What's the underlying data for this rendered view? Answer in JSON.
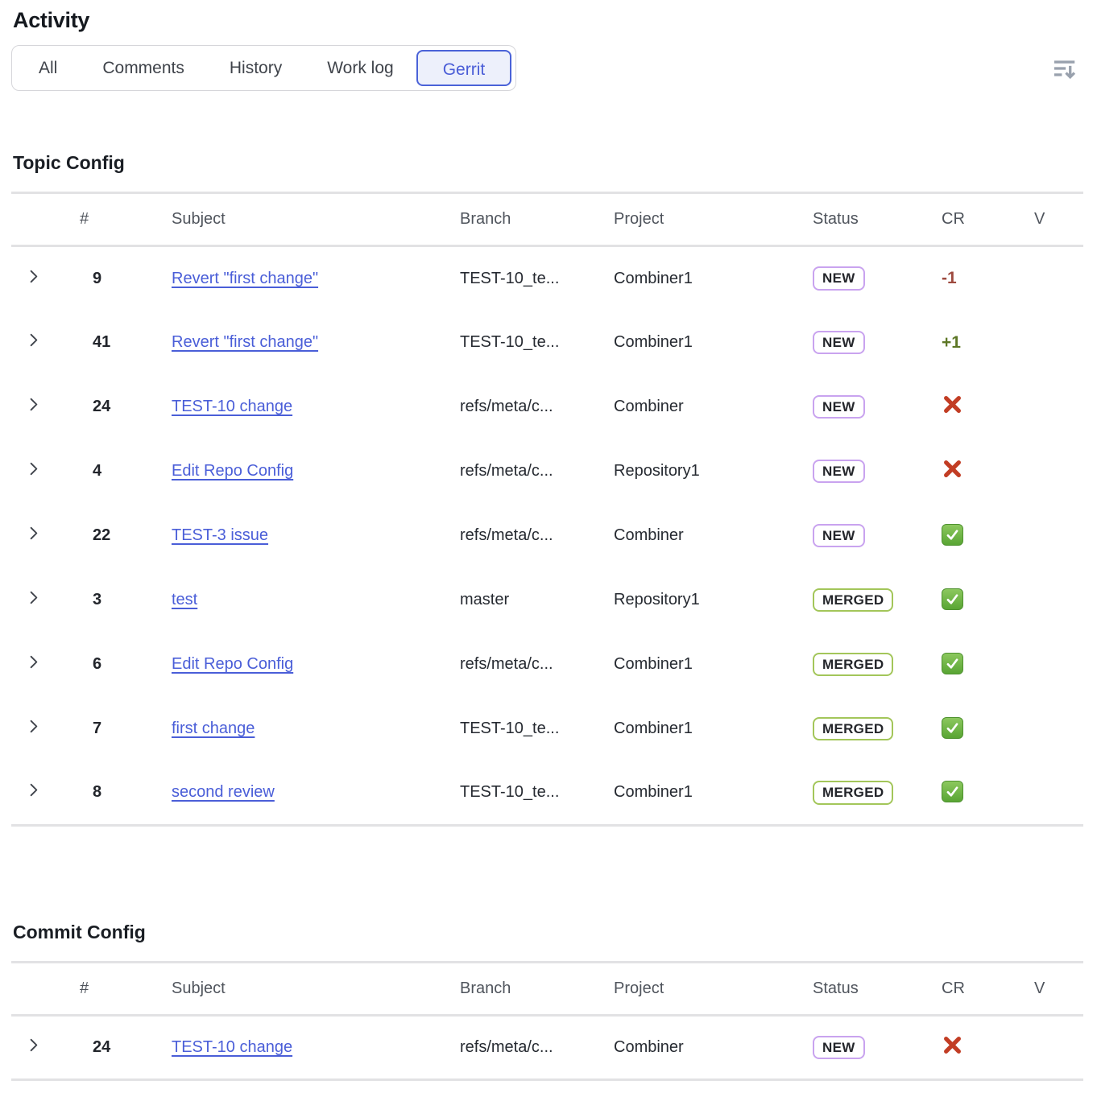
{
  "page": {
    "title": "Activity"
  },
  "tabs": {
    "items": [
      {
        "label": "All",
        "active": false
      },
      {
        "label": "Comments",
        "active": false
      },
      {
        "label": "History",
        "active": false
      },
      {
        "label": "Work log",
        "active": false
      },
      {
        "label": "Gerrit",
        "active": true
      }
    ]
  },
  "toolbar": {
    "sort_icon": "sort-descending-icon"
  },
  "table_columns": [
    "#",
    "Subject",
    "Branch",
    "Project",
    "Status",
    "CR",
    "V"
  ],
  "icons": {
    "row_expander": "chevron-right-icon",
    "cr_fail": "red-cross-icon",
    "cr_pass": "green-check-icon"
  },
  "colors": {
    "link": "#4a5ed8",
    "tab_active": "#4a5dd7",
    "tab_active_bg": "#edf0fb",
    "status_new_border": "#c9a3ef",
    "status_merged_border": "#a3c65a",
    "cr_negative": "#9e4a3f",
    "cr_positive": "#5d7726",
    "cross_red": "#c23d24",
    "check_green": "#59a534"
  },
  "sections": [
    {
      "title": "Topic Config",
      "rows": [
        {
          "number": "9",
          "subject": "Revert \"first change\"",
          "branch": "TEST-10_te...",
          "project": "Combiner1",
          "status": "NEW",
          "cr": "-1",
          "cr_type": "negative",
          "verified": ""
        },
        {
          "number": "41",
          "subject": "Revert \"first change\"",
          "branch": "TEST-10_te...",
          "project": "Combiner1",
          "status": "NEW",
          "cr": "+1",
          "cr_type": "positive",
          "verified": ""
        },
        {
          "number": "24",
          "subject": "TEST-10 change",
          "branch": "refs/meta/c...",
          "project": "Combiner",
          "status": "NEW",
          "cr": "",
          "cr_type": "cross",
          "verified": ""
        },
        {
          "number": "4",
          "subject": "Edit Repo Config",
          "branch": "refs/meta/c...",
          "project": "Repository1",
          "status": "NEW",
          "cr": "",
          "cr_type": "cross",
          "verified": ""
        },
        {
          "number": "22",
          "subject": "TEST-3 issue",
          "branch": "refs/meta/c...",
          "project": "Combiner",
          "status": "NEW",
          "cr": "",
          "cr_type": "check",
          "verified": ""
        },
        {
          "number": "3",
          "subject": "test",
          "branch": "master",
          "project": "Repository1",
          "status": "MERGED",
          "cr": "",
          "cr_type": "check",
          "verified": ""
        },
        {
          "number": "6",
          "subject": "Edit Repo Config",
          "branch": "refs/meta/c...",
          "project": "Combiner1",
          "status": "MERGED",
          "cr": "",
          "cr_type": "check",
          "verified": ""
        },
        {
          "number": "7",
          "subject": "first change",
          "branch": "TEST-10_te...",
          "project": "Combiner1",
          "status": "MERGED",
          "cr": "",
          "cr_type": "check",
          "verified": ""
        },
        {
          "number": "8",
          "subject": "second review",
          "branch": "TEST-10_te...",
          "project": "Combiner1",
          "status": "MERGED",
          "cr": "",
          "cr_type": "check",
          "verified": ""
        }
      ]
    },
    {
      "title": "Commit Config",
      "rows": [
        {
          "number": "24",
          "subject": "TEST-10 change",
          "branch": "refs/meta/c...",
          "project": "Combiner",
          "status": "NEW",
          "cr": "",
          "cr_type": "cross",
          "verified": ""
        }
      ]
    }
  ]
}
